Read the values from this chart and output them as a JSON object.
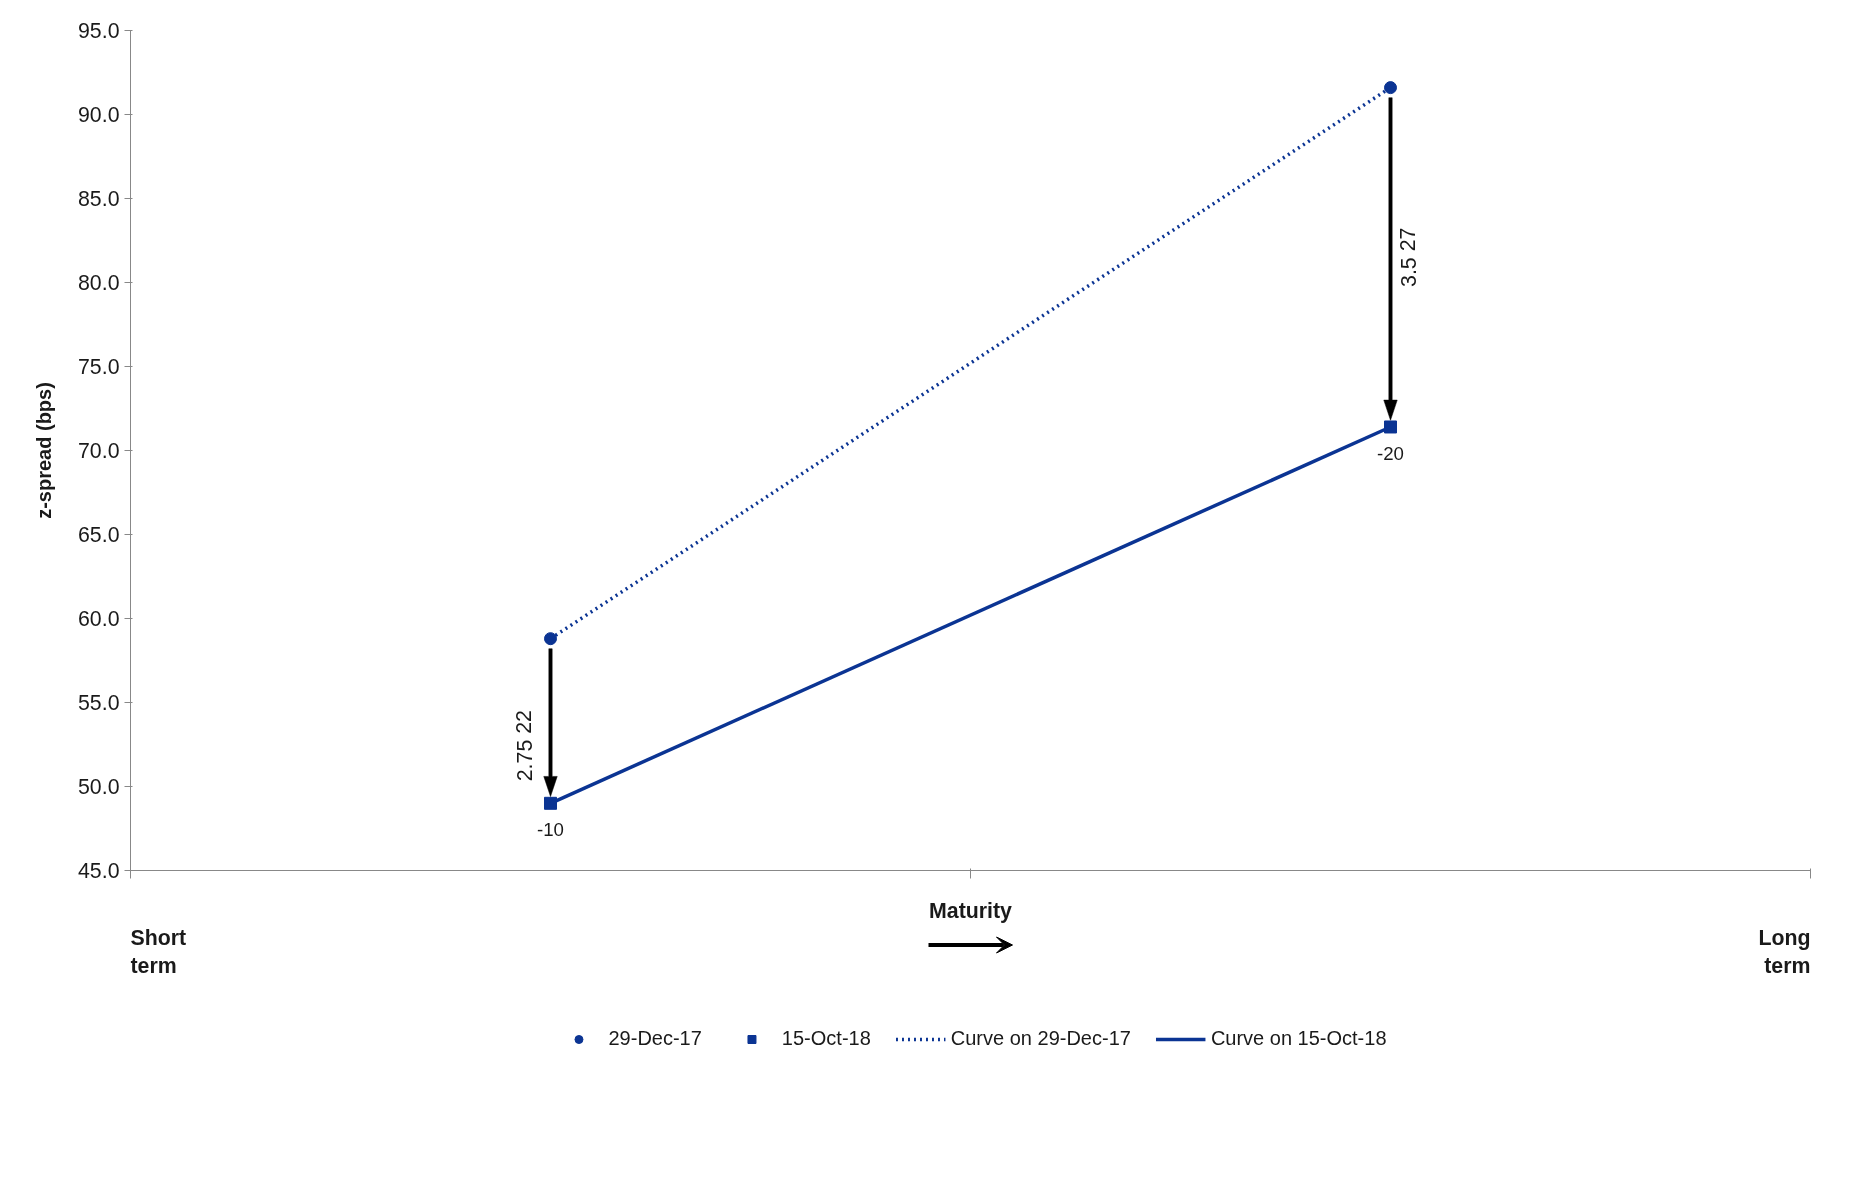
{
  "chart_data": {
    "type": "line",
    "xlabel": "Maturity",
    "ylabel": "z-spread (bps)",
    "categories": [
      null,
      null
    ],
    "ylim": [
      45,
      95
    ],
    "yticks": [
      {
        "value": 45,
        "label": "45.0"
      },
      {
        "value": 50,
        "label": "50.0"
      },
      {
        "value": 55,
        "label": "55.0"
      },
      {
        "value": 60,
        "label": "60.0"
      },
      {
        "value": 65,
        "label": "65.0"
      },
      {
        "value": 70,
        "label": "70.0"
      },
      {
        "value": 75,
        "label": "75.0"
      },
      {
        "value": 80,
        "label": "80.0"
      },
      {
        "value": 85,
        "label": "85.0"
      },
      {
        "value": 90,
        "label": "90.0"
      },
      {
        "value": 95,
        "label": "95.0"
      }
    ],
    "grid": false,
    "legend": "bottom",
    "series": [
      {
        "name": "29-Dec-17",
        "type": "scatter",
        "marker": "circle",
        "color": "#0b3493",
        "values": [
          58.8,
          91.6
        ]
      },
      {
        "name": "15-Oct-18",
        "type": "scatter",
        "marker": "square",
        "color": "#0b3493",
        "values": [
          49.0,
          71.4
        ]
      },
      {
        "name": "Curve on 29-Dec-17",
        "line_style": "dotted",
        "color": "#0b3493",
        "values": [
          58.8,
          91.6
        ]
      },
      {
        "name": "Curve on 15-Oct-18",
        "line_style": "solid",
        "color": "#0b3493",
        "values": [
          49.0,
          71.4
        ]
      }
    ],
    "annotations": [
      {
        "text": "-10",
        "y": 49.0
      },
      {
        "text": "-20",
        "y": 71.4
      },
      "2.75 22",
      "3.5 27",
      "Short term",
      "Long term"
    ]
  }
}
